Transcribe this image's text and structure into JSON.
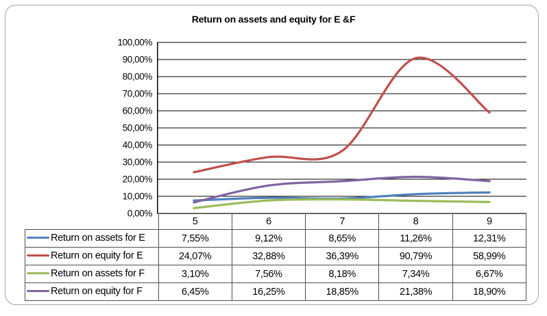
{
  "frame": {
    "border_color": "#a3a3a3",
    "background": "#ffffff"
  },
  "chart_data": {
    "type": "line",
    "title": "Return on assets and equity for E &F",
    "categories": [
      "5",
      "6",
      "7",
      "8",
      "9"
    ],
    "series": [
      {
        "name": "Return on assets for E",
        "color": "#4f81bd",
        "values": [
          7.55,
          9.12,
          8.65,
          11.26,
          12.31
        ],
        "display": [
          "7,55%",
          "9,12%",
          "8,65%",
          "11,26%",
          "12,31%"
        ]
      },
      {
        "name": "Return on equity for E",
        "color": "#c0504d",
        "values": [
          24.07,
          32.88,
          36.39,
          90.79,
          58.99
        ],
        "display": [
          "24,07%",
          "32,88%",
          "36,39%",
          "90,79%",
          "58,99%"
        ]
      },
      {
        "name": "Return on assets for F",
        "color": "#9bbb59",
        "values": [
          3.1,
          7.56,
          8.18,
          7.34,
          6.67
        ],
        "display": [
          "3,10%",
          "7,56%",
          "8,18%",
          "7,34%",
          "6,67%"
        ]
      },
      {
        "name": "Return on equity for F",
        "color": "#8064a2",
        "values": [
          6.45,
          16.25,
          18.85,
          21.38,
          18.9
        ],
        "display": [
          "6,45%",
          "16,25%",
          "18,85%",
          "21,38%",
          "18,90%"
        ]
      }
    ],
    "y_axis": {
      "min": 0,
      "max": 100,
      "step": 10,
      "tick_labels": [
        "100,00%",
        "90,00%",
        "80,00%",
        "70,00%",
        "60,00%",
        "50,00%",
        "40,00%",
        "30,00%",
        "20,00%",
        "10,00%",
        "0,00%"
      ]
    },
    "xlabel": "",
    "ylabel": "",
    "grid": true,
    "smooth_lines": true,
    "line_width": 3.25,
    "gridline_color": "#000000",
    "table_border_color": "#4d4d4d",
    "legend_position": "table-left"
  }
}
